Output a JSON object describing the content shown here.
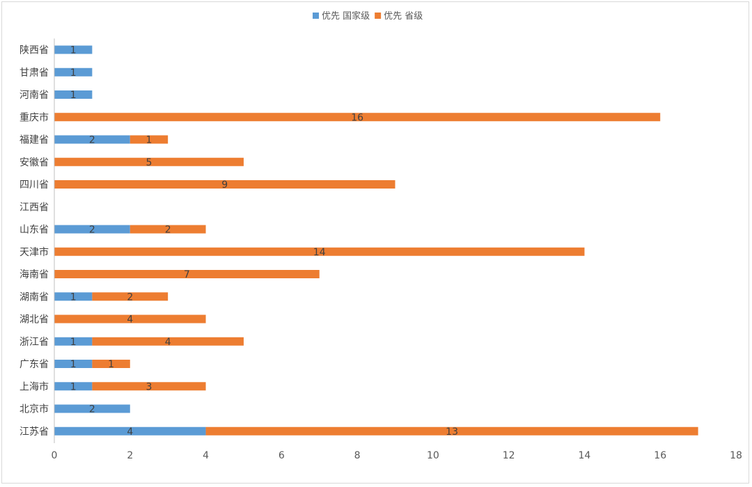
{
  "chart_data": {
    "type": "bar",
    "orientation": "horizontal",
    "stacked": true,
    "title": "",
    "xlabel": "",
    "ylabel": "",
    "xlim": [
      0,
      18
    ],
    "x_ticks": [
      0,
      2,
      4,
      6,
      8,
      10,
      12,
      14,
      16,
      18
    ],
    "grid": false,
    "legend_position": "top",
    "categories": [
      "陕西省",
      "甘肃省",
      "河南省",
      "重庆市",
      "福建省",
      "安徽省",
      "四川省",
      "江西省",
      "山东省",
      "天津市",
      "海南省",
      "湖南省",
      "湖北省",
      "浙江省",
      "广东省",
      "上海市",
      "北京市",
      "江苏省"
    ],
    "series": [
      {
        "name": "优先 国家级",
        "color": "#5B9BD5",
        "values": [
          1,
          1,
          1,
          null,
          2,
          null,
          null,
          null,
          2,
          null,
          null,
          1,
          null,
          1,
          1,
          1,
          2,
          4
        ]
      },
      {
        "name": "优先 省级",
        "color": "#ED7D31",
        "values": [
          null,
          null,
          null,
          16,
          1,
          5,
          9,
          null,
          2,
          14,
          7,
          2,
          4,
          4,
          1,
          3,
          null,
          13
        ]
      }
    ]
  }
}
